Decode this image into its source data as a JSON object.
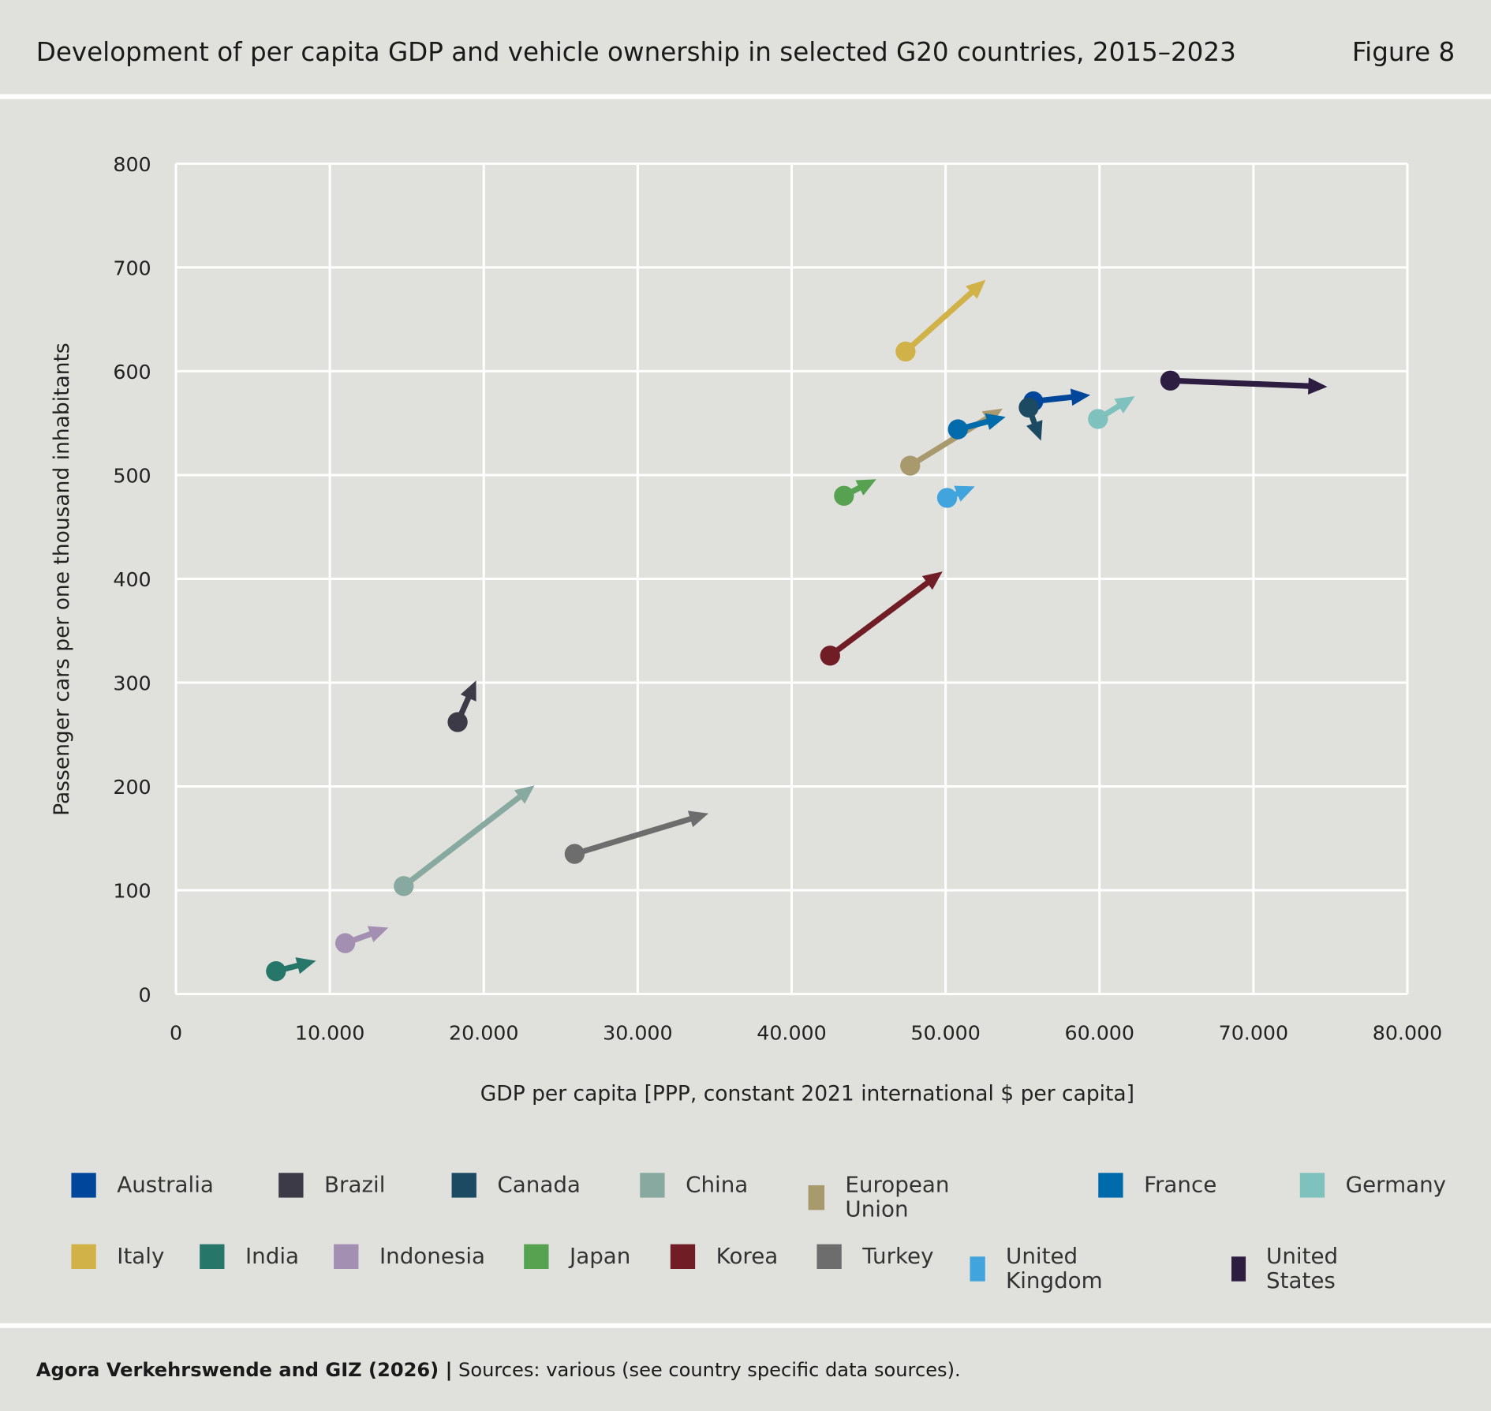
{
  "header": {
    "title": "Development of per capita GDP and vehicle ownership in selected G20 countries, 2015–2023",
    "figure": "Figure 8"
  },
  "footer": {
    "source_bold": "Agora Verkehrswende and GIZ (2026) |",
    "source_text": " Sources: various (see country specific data sources)."
  },
  "chart_data": {
    "type": "scatter",
    "subtype": "arrow",
    "xlabel": "GDP per capita [PPP, constant 2021 international $ per capita]",
    "ylabel": "Passenger cars per one thousand inhabitants",
    "xlim": [
      0,
      80000
    ],
    "ylim": [
      0,
      800
    ],
    "xticks": [
      "0",
      "10.000",
      "20.000",
      "30.000",
      "40.000",
      "50.000",
      "60.000",
      "70.000",
      "80.000"
    ],
    "yticks": [
      "0",
      "100",
      "200",
      "300",
      "400",
      "500",
      "600",
      "700",
      "800"
    ],
    "grid": true,
    "legend_position": "bottom",
    "series": [
      {
        "name": "Australia",
        "color": "#00479b",
        "start": [
          55700,
          571
        ],
        "end": [
          59400,
          577
        ]
      },
      {
        "name": "Brazil",
        "color": "#3c3a47",
        "start": [
          18300,
          262
        ],
        "end": [
          19500,
          302
        ]
      },
      {
        "name": "Canada",
        "color": "#1d4a63",
        "start": [
          55400,
          565
        ],
        "end": [
          56200,
          533
        ]
      },
      {
        "name": "China",
        "color": "#88a9a0",
        "start": [
          14800,
          104
        ],
        "end": [
          23300,
          201
        ]
      },
      {
        "name": "European Union",
        "color": "#a89a6d",
        "start": [
          47700,
          509
        ],
        "end": [
          53700,
          564
        ]
      },
      {
        "name": "France",
        "color": "#006aab",
        "start": [
          50800,
          544
        ],
        "end": [
          53900,
          556
        ]
      },
      {
        "name": "Germany",
        "color": "#7fc1bd",
        "start": [
          59900,
          554
        ],
        "end": [
          62300,
          576
        ]
      },
      {
        "name": "Italy",
        "color": "#d0b248",
        "start": [
          47400,
          619
        ],
        "end": [
          52600,
          688
        ]
      },
      {
        "name": "India",
        "color": "#26776a",
        "start": [
          6500,
          22
        ],
        "end": [
          9100,
          32
        ]
      },
      {
        "name": "Indonesia",
        "color": "#a38fb1",
        "start": [
          11000,
          49
        ],
        "end": [
          13800,
          64
        ]
      },
      {
        "name": "Japan",
        "color": "#56a251",
        "start": [
          43400,
          480
        ],
        "end": [
          45500,
          496
        ]
      },
      {
        "name": "Korea",
        "color": "#701d26",
        "start": [
          42500,
          326
        ],
        "end": [
          49800,
          407
        ]
      },
      {
        "name": "Turkey",
        "color": "#6d6d6d",
        "start": [
          25900,
          135
        ],
        "end": [
          34600,
          174
        ]
      },
      {
        "name": "United Kingdom",
        "color": "#41a4dd",
        "start": [
          50100,
          478
        ],
        "end": [
          51900,
          489
        ]
      },
      {
        "name": "United States",
        "color": "#2d1e41",
        "start": [
          64600,
          591
        ],
        "end": [
          74800,
          585
        ]
      }
    ]
  }
}
